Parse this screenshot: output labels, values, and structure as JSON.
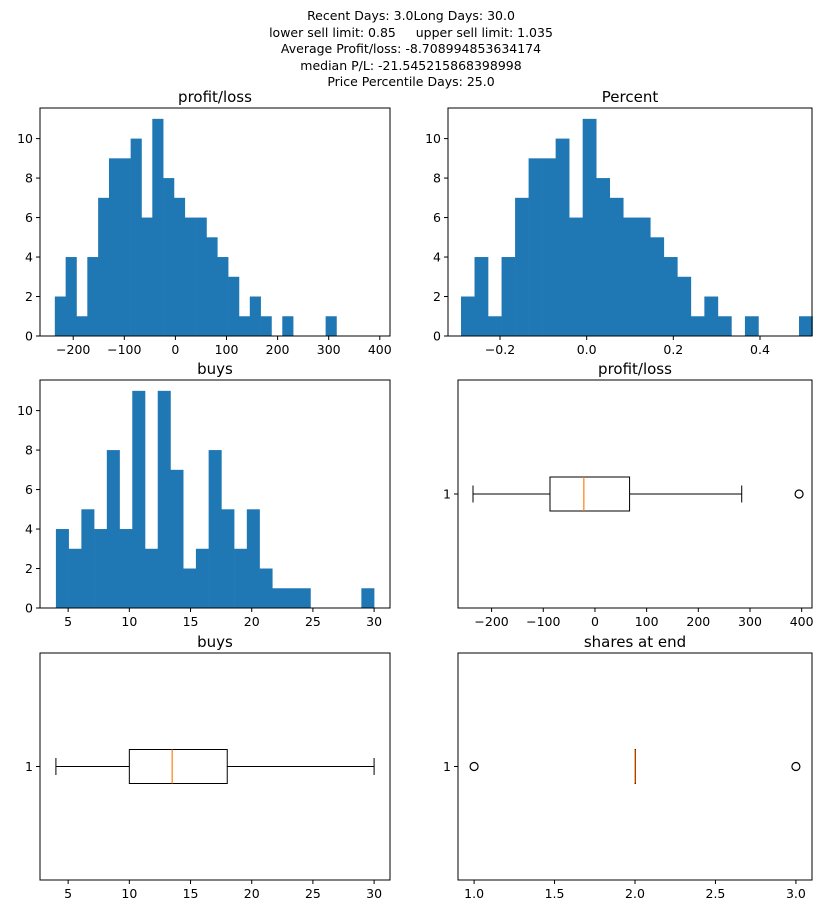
{
  "suptitle_lines": [
    "Recent Days: 3.0Long Days: 30.0",
    "lower sell limit: 0.85     upper sell limit: 1.035",
    "Average Profit/loss: -8.708994853634174",
    "median P/L: -21.545215868398998",
    "Price Percentile Days: 25.0"
  ],
  "colors": {
    "bar": "#1f77b4",
    "median": "#ff7f0e",
    "box": "#000000"
  },
  "chart_data": [
    {
      "type": "bar",
      "title": "profit/loss",
      "xlim": [
        -265,
        420
      ],
      "ylim": [
        0,
        11.55
      ],
      "xticks": [
        -200,
        -100,
        0,
        100,
        200,
        300,
        400
      ],
      "yticks": [
        0,
        2,
        4,
        6,
        8,
        10
      ],
      "bin_start": -236,
      "bin_width": 21.2,
      "counts": [
        2,
        4,
        1,
        4,
        7,
        9,
        9,
        10,
        6,
        11,
        8,
        7,
        6,
        6,
        5,
        4,
        3,
        1,
        2,
        1,
        0,
        1,
        0,
        0,
        0,
        1
      ]
    },
    {
      "type": "bar",
      "title": "Percent",
      "xlim": [
        -0.32,
        0.52
      ],
      "ylim": [
        0,
        11.55
      ],
      "xticks": [
        -0.2,
        0.0,
        0.2,
        0.4
      ],
      "yticks": [
        0,
        2,
        4,
        6,
        8,
        10
      ],
      "bin_start": -0.29,
      "bin_width": 0.0312,
      "counts": [
        2,
        4,
        1,
        4,
        7,
        9,
        9,
        10,
        6,
        11,
        8,
        7,
        6,
        6,
        5,
        4,
        3,
        1,
        2,
        1,
        0,
        1,
        0,
        0,
        0,
        1
      ]
    },
    {
      "type": "bar",
      "title": "buys",
      "xlim": [
        2.7,
        31.3
      ],
      "ylim": [
        0,
        11.55
      ],
      "xticks": [
        5,
        10,
        15,
        20,
        25,
        30
      ],
      "yticks": [
        0,
        2,
        4,
        6,
        8,
        10
      ],
      "bin_start": 4,
      "bin_width": 1.04,
      "counts": [
        4,
        3,
        5,
        4,
        8,
        4,
        11,
        3,
        11,
        7,
        2,
        3,
        8,
        5,
        3,
        5,
        2,
        1,
        1,
        1,
        0,
        0,
        0,
        0,
        1
      ]
    },
    {
      "type": "box",
      "title": "profit/loss",
      "xlim": [
        -265,
        420
      ],
      "xticks": [
        -200,
        -100,
        0,
        100,
        200,
        300,
        400
      ],
      "ytick_label": "1",
      "whisker_low": -236,
      "q1": -87,
      "median": -21.5,
      "q3": 67,
      "whisker_high": 284,
      "outliers": [
        395
      ]
    },
    {
      "type": "box",
      "title": "buys",
      "xlim": [
        2.7,
        31.3
      ],
      "xticks": [
        5,
        10,
        15,
        20,
        25,
        30
      ],
      "ytick_label": "1",
      "whisker_low": 4,
      "q1": 10,
      "median": 13.5,
      "q3": 18,
      "whisker_high": 30,
      "outliers": []
    },
    {
      "type": "box",
      "title": "shares at end",
      "xlim": [
        0.9,
        3.1
      ],
      "xticks": [
        1.0,
        1.5,
        2.0,
        2.5,
        3.0
      ],
      "ytick_label": "1",
      "whisker_low": 2,
      "q1": 2,
      "median": 2,
      "q3": 2,
      "whisker_high": 2,
      "outliers": [
        1,
        3
      ]
    }
  ]
}
